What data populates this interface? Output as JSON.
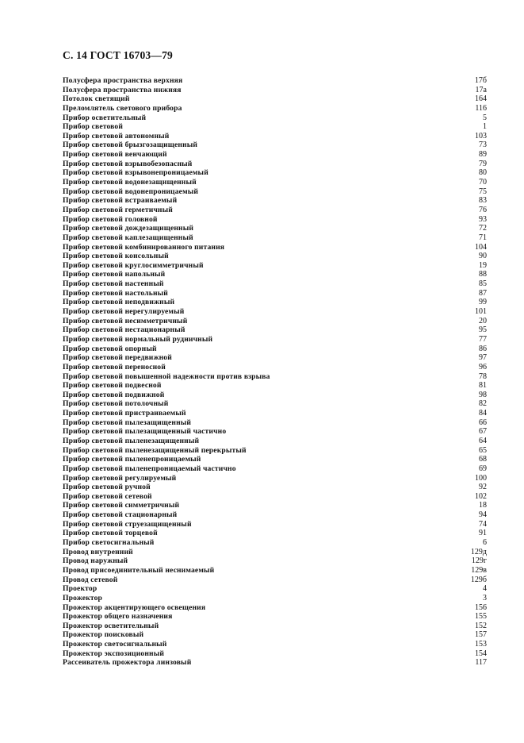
{
  "header": "С. 14 ГОСТ 16703—79",
  "entries": [
    {
      "term": "Полусфера пространства верхняя",
      "ref": "17б"
    },
    {
      "term": "Полусфера пространства нижняя",
      "ref": "17а"
    },
    {
      "term": "Потолок светящий",
      "ref": "164"
    },
    {
      "term": "Преломлятель светового прибора",
      "ref": "116"
    },
    {
      "term": "Прибор осветительный",
      "ref": "5"
    },
    {
      "term": "Прибор световой",
      "ref": "1"
    },
    {
      "term": "Прибор световой автономный",
      "ref": "103"
    },
    {
      "term": "Прибор световой брызгозащищенный",
      "ref": "73"
    },
    {
      "term": "Прибор световой венчающий",
      "ref": "89"
    },
    {
      "term": "Прибор световой взрывобезопасный",
      "ref": "79"
    },
    {
      "term": "Прибор световой взрывонепроницаемый",
      "ref": "80"
    },
    {
      "term": "Прибор световой водонезащищенный",
      "ref": "70"
    },
    {
      "term": "Прибор световой водонепроницаемый",
      "ref": "75"
    },
    {
      "term": "Прибор световой встраиваемый",
      "ref": "83"
    },
    {
      "term": "Прибор световой герметичный",
      "ref": "76"
    },
    {
      "term": "Прибор световой головной",
      "ref": "93"
    },
    {
      "term": "Прибор световой дождезащищенный",
      "ref": "72"
    },
    {
      "term": "Прибор световой каплезащищенный",
      "ref": "71"
    },
    {
      "term": "Прибор световой комбинированного питания",
      "ref": "104"
    },
    {
      "term": "Прибор световой консольный",
      "ref": "90"
    },
    {
      "term": "Прибор световой круглосимметричный",
      "ref": "19"
    },
    {
      "term": "Прибор световой напольный",
      "ref": "88"
    },
    {
      "term": "Прибор световой настенный",
      "ref": "85"
    },
    {
      "term": "Прибор световой настольный",
      "ref": "87"
    },
    {
      "term": "Прибор световой неподвижный",
      "ref": "99"
    },
    {
      "term": "Прибор световой нерегулируемый",
      "ref": "101"
    },
    {
      "term": "Прибор световой несимметричный",
      "ref": "20"
    },
    {
      "term": "Прибор световой нестационарный",
      "ref": "95"
    },
    {
      "term": "Прибор световой нормальный рудничный",
      "ref": "77"
    },
    {
      "term": "Прибор световой опорный",
      "ref": "86"
    },
    {
      "term": "Прибор световой передвижной",
      "ref": "97"
    },
    {
      "term": "Прибор световой переносной",
      "ref": "96"
    },
    {
      "term": "Прибор световой повышенной надежности против взрыва",
      "ref": "78"
    },
    {
      "term": "Прибор световой подвесной",
      "ref": "81"
    },
    {
      "term": "Прибор световой подвижной",
      "ref": "98"
    },
    {
      "term": "Прибор световой потолочный",
      "ref": "82"
    },
    {
      "term": "Прибор световой пристраиваемый",
      "ref": "84"
    },
    {
      "term": "Прибор световой пылезащищенный",
      "ref": "66"
    },
    {
      "term": "Прибор световой пылезащищенный частично",
      "ref": "67"
    },
    {
      "term": "Прибор световой пыленезащищенный",
      "ref": "64"
    },
    {
      "term": "Прибор световой пыленезащищенный перекрытый",
      "ref": "65"
    },
    {
      "term": "Прибор световой пыленепроницаемый",
      "ref": "68"
    },
    {
      "term": "Прибор световой пыленепроницаемый частично",
      "ref": "69"
    },
    {
      "term": "Прибор световой регулируемый",
      "ref": "100"
    },
    {
      "term": "Прибор световой ручной",
      "ref": "92"
    },
    {
      "term": "Прибор световой сетевой",
      "ref": "102"
    },
    {
      "term": "Прибор световой симметричный",
      "ref": "18"
    },
    {
      "term": "Прибор световой стационарный",
      "ref": "94"
    },
    {
      "term": "Прибор световой струезащищенный",
      "ref": "74"
    },
    {
      "term": "Прибор световой торцевой",
      "ref": "91"
    },
    {
      "term": "Прибор светосигнальный",
      "ref": "6"
    },
    {
      "term": "Провод внутренний",
      "ref": "129д"
    },
    {
      "term": "Провод наружный",
      "ref": "129г"
    },
    {
      "term": "Провод присоединительный неснимаемый",
      "ref": "129в"
    },
    {
      "term": "Провод сетевой",
      "ref": "129б"
    },
    {
      "term": "Проектор",
      "ref": "4"
    },
    {
      "term": "Прожектор",
      "ref": "3"
    },
    {
      "term": "Прожектор акцентирующего освещения",
      "ref": "156"
    },
    {
      "term": "Прожектор общего назначения",
      "ref": "155"
    },
    {
      "term": "Прожектор осветительный",
      "ref": "152"
    },
    {
      "term": "Прожектор поисковый",
      "ref": "157"
    },
    {
      "term": "Прожектор светосигнальный",
      "ref": "153"
    },
    {
      "term": "Прожектор экспозиционный",
      "ref": "154"
    },
    {
      "term": "Рассеиватель прожектора линзовый",
      "ref": "117"
    }
  ]
}
